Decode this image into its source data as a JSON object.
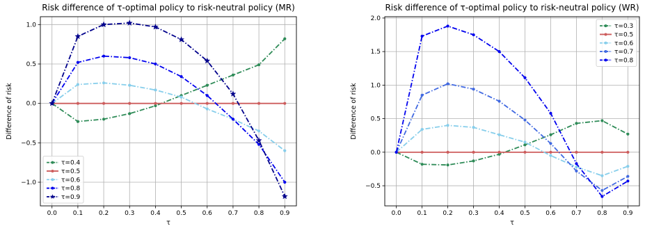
{
  "chart_data": [
    {
      "type": "line",
      "title": "Risk difference of τ-optimal policy to risk-neutral policy (MR)",
      "xlabel": "τ",
      "ylabel": "Difference of risk",
      "x": [
        0.0,
        0.1,
        0.2,
        0.3,
        0.4,
        0.5,
        0.6,
        0.7,
        0.8,
        0.9
      ],
      "xticks": [
        "0.0",
        "0.1",
        "0.2",
        "0.3",
        "0.4",
        "0.5",
        "0.6",
        "0.7",
        "0.8",
        "0.9"
      ],
      "xlim": [
        -0.045,
        0.945
      ],
      "ylim": [
        -1.3,
        1.1
      ],
      "yticks": [
        -1.0,
        -0.5,
        0.0,
        0.5,
        1.0
      ],
      "ytick_labels": [
        "−1.0",
        "−0.5",
        "0.0",
        "0.5",
        "1.0"
      ],
      "grid": true,
      "legend_position": "lower-left",
      "series": [
        {
          "name": "τ=0.4",
          "color": "#2e8b57",
          "dash": "dashdot",
          "marker": "dot",
          "values": [
            0.0,
            -0.23,
            -0.2,
            -0.13,
            -0.03,
            0.1,
            0.23,
            0.36,
            0.49,
            0.82
          ]
        },
        {
          "name": "τ=0.5",
          "color": "#cd5c5c",
          "dash": "solid",
          "marker": "dot",
          "values": [
            0.0,
            0.0,
            0.0,
            0.0,
            0.0,
            0.0,
            0.0,
            0.0,
            0.0,
            0.0
          ]
        },
        {
          "name": "τ=0.6",
          "color": "#87ceeb",
          "dash": "dashdot",
          "marker": "dot",
          "values": [
            0.0,
            0.24,
            0.26,
            0.23,
            0.17,
            0.08,
            -0.07,
            -0.2,
            -0.35,
            -0.6
          ]
        },
        {
          "name": "τ=0.8",
          "color": "#0000ee",
          "dash": "dashdot",
          "marker": "dot",
          "values": [
            0.0,
            0.52,
            0.6,
            0.58,
            0.5,
            0.34,
            0.1,
            -0.2,
            -0.52,
            -1.0
          ]
        },
        {
          "name": "τ=0.9",
          "color": "#00008b",
          "dash": "dashdot",
          "marker": "star",
          "values": [
            0.0,
            0.85,
            1.0,
            1.02,
            0.97,
            0.81,
            0.54,
            0.12,
            -0.47,
            -1.18
          ]
        }
      ]
    },
    {
      "type": "line",
      "title": "Risk difference of τ-optimal policy to risk-neutral policy (WR)",
      "xlabel": "τ",
      "ylabel": "Difference of risk",
      "x": [
        0.0,
        0.1,
        0.2,
        0.3,
        0.4,
        0.5,
        0.6,
        0.7,
        0.8,
        0.9
      ],
      "xticks": [
        "0.0",
        "0.1",
        "0.2",
        "0.3",
        "0.4",
        "0.5",
        "0.6",
        "0.7",
        "0.8",
        "0.9"
      ],
      "xlim": [
        -0.045,
        0.945
      ],
      "ylim": [
        -0.8,
        2.02
      ],
      "yticks": [
        -0.5,
        0.0,
        0.5,
        1.0,
        1.5,
        2.0
      ],
      "ytick_labels": [
        "−0.5",
        "0.0",
        "0.5",
        "1.0",
        "1.5",
        "2.0"
      ],
      "grid": true,
      "legend_position": "top-right",
      "series": [
        {
          "name": "τ=0.3",
          "color": "#2e8b57",
          "dash": "dashdot",
          "marker": "dot",
          "values": [
            0.0,
            -0.18,
            -0.19,
            -0.13,
            -0.03,
            0.11,
            0.26,
            0.43,
            0.47,
            0.27
          ]
        },
        {
          "name": "τ=0.5",
          "color": "#cd5c5c",
          "dash": "solid",
          "marker": "dot",
          "values": [
            0.0,
            0.0,
            0.0,
            0.0,
            0.0,
            0.0,
            0.0,
            0.0,
            0.0,
            0.0
          ]
        },
        {
          "name": "τ=0.6",
          "color": "#87ceeb",
          "dash": "dashdot",
          "marker": "dot",
          "values": [
            0.0,
            0.34,
            0.4,
            0.37,
            0.26,
            0.15,
            -0.05,
            -0.22,
            -0.35,
            -0.21
          ]
        },
        {
          "name": "τ=0.7",
          "color": "#4169e1",
          "dash": "dashdot",
          "marker": "dot",
          "values": [
            0.0,
            0.85,
            1.02,
            0.94,
            0.76,
            0.48,
            0.13,
            -0.28,
            -0.57,
            -0.36
          ]
        },
        {
          "name": "τ=0.8",
          "color": "#0000ee",
          "dash": "dashdot",
          "marker": "dot",
          "values": [
            0.0,
            1.73,
            1.88,
            1.75,
            1.5,
            1.11,
            0.58,
            -0.17,
            -0.66,
            -0.43
          ]
        }
      ]
    }
  ]
}
